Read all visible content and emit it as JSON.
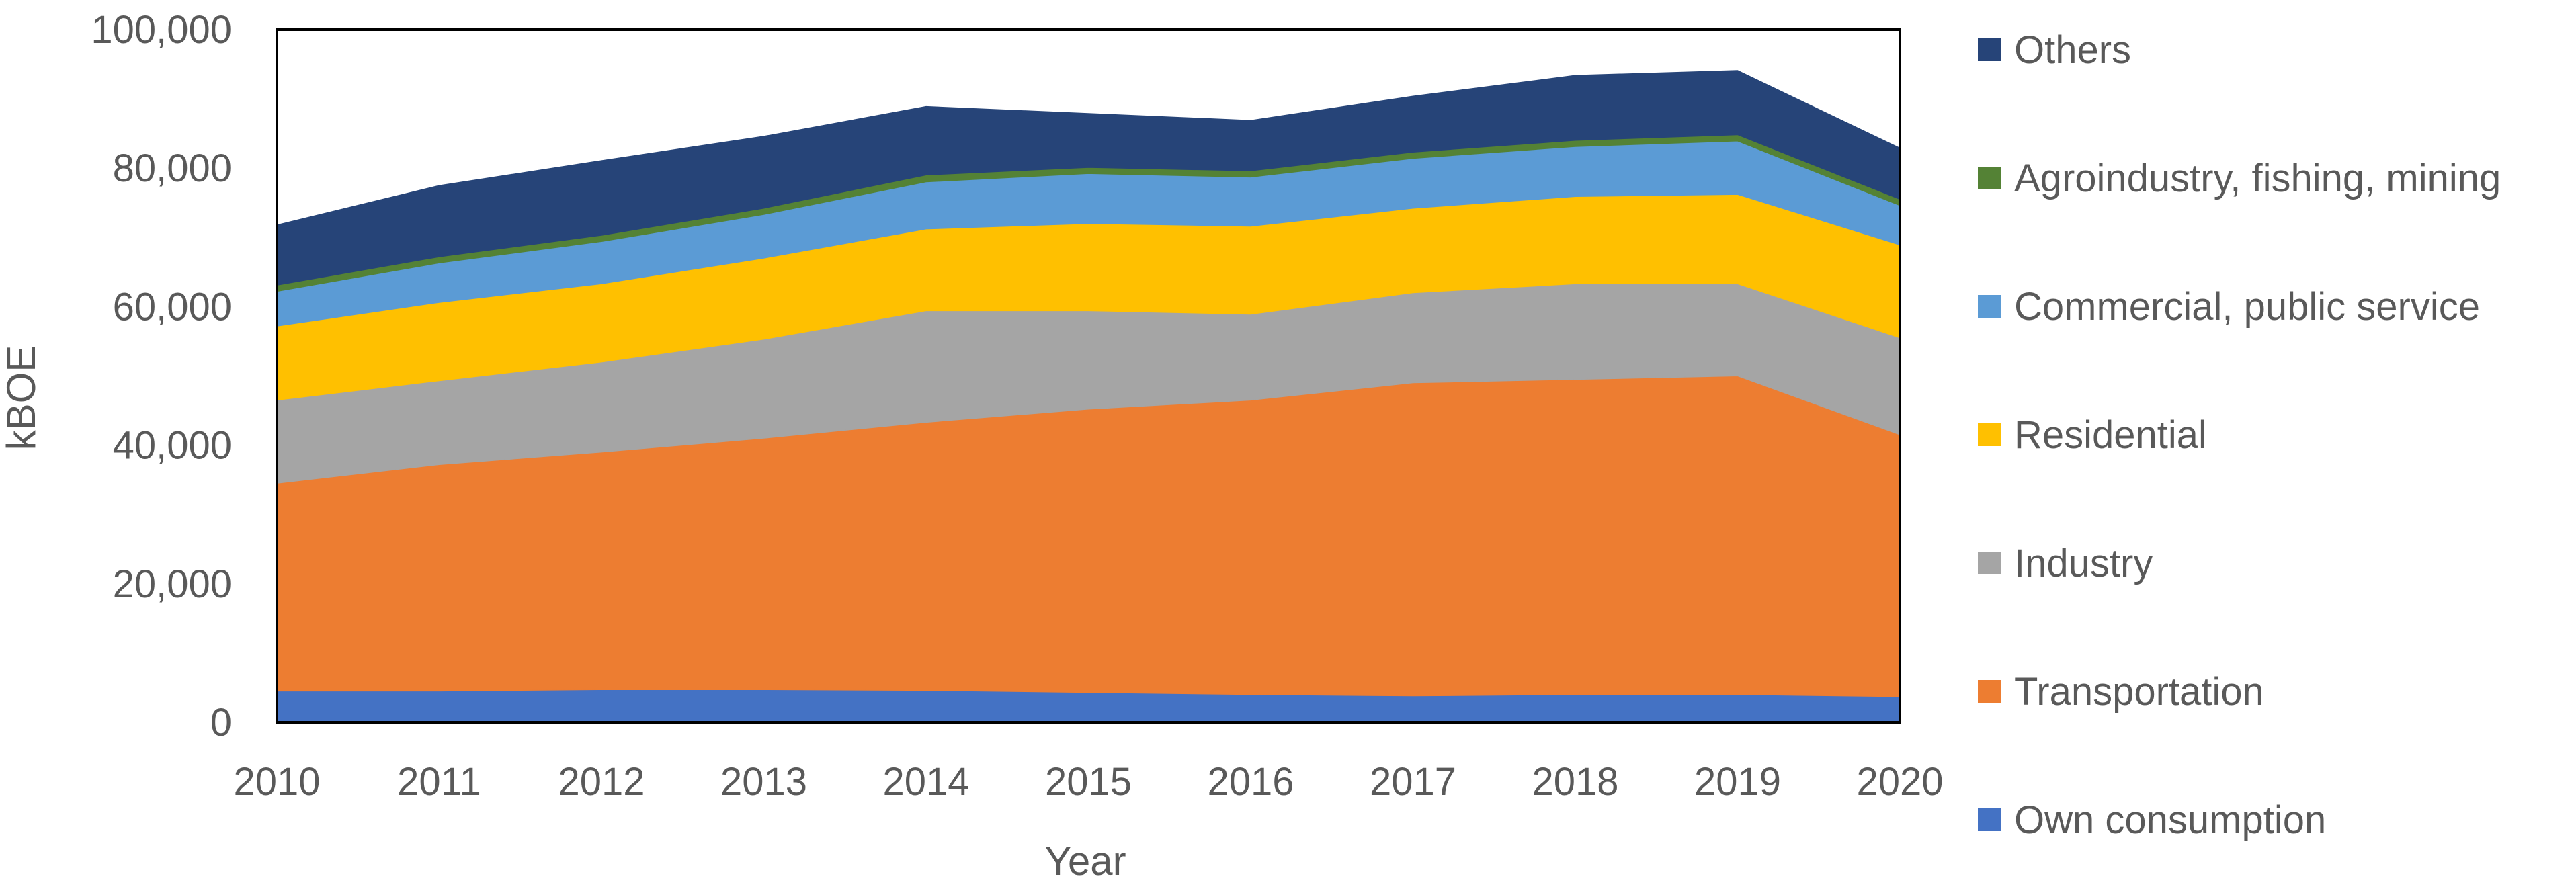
{
  "chart_data": {
    "type": "area",
    "stacked": true,
    "title": "",
    "xlabel": "Year",
    "ylabel": "kBOE",
    "x": [
      2010,
      2011,
      2012,
      2013,
      2014,
      2015,
      2016,
      2017,
      2018,
      2019,
      2020
    ],
    "xticks": [
      "2010",
      "2011",
      "2012",
      "2013",
      "2014",
      "2015",
      "2016",
      "2017",
      "2018",
      "2019",
      "2020"
    ],
    "ylim": [
      0,
      100000
    ],
    "yticks": [
      0,
      20000,
      40000,
      60000,
      80000,
      100000
    ],
    "ytick_labels": [
      "0",
      "20,000",
      "40,000",
      "60,000",
      "80,000",
      "100,000"
    ],
    "grid": false,
    "legend_position": "right",
    "series": [
      {
        "name": "Own consumption",
        "color": "#4472C4",
        "values": [
          4500,
          4500,
          4700,
          4700,
          4600,
          4300,
          4000,
          3800,
          4000,
          4000,
          3700
        ]
      },
      {
        "name": "Transportation",
        "color": "#ED7D31",
        "values": [
          30000,
          32700,
          34300,
          36300,
          38700,
          40900,
          42500,
          45200,
          45500,
          46000,
          37800
        ]
      },
      {
        "name": "Industry",
        "color": "#A5A5A5",
        "values": [
          12000,
          12100,
          13000,
          14300,
          16100,
          14200,
          12400,
          13000,
          13800,
          13300,
          14000
        ]
      },
      {
        "name": "Residential",
        "color": "#FFC000",
        "values": [
          10700,
          11300,
          11300,
          11700,
          11800,
          12600,
          12700,
          12200,
          12600,
          12900,
          13400
        ]
      },
      {
        "name": "Commercial, public service",
        "color": "#5B9BD5",
        "values": [
          5000,
          5700,
          6100,
          6300,
          6800,
          7200,
          7100,
          7200,
          7200,
          7700,
          5700
        ]
      },
      {
        "name": "Agroindustry, fishing, mining",
        "color": "#548235",
        "values": [
          900,
          900,
          900,
          900,
          1000,
          900,
          900,
          900,
          900,
          900,
          900
        ]
      },
      {
        "name": "Others",
        "color": "#264478",
        "values": [
          8700,
          10300,
          10800,
          10400,
          9900,
          7800,
          7300,
          8100,
          9400,
          9300,
          7400
        ]
      }
    ]
  }
}
